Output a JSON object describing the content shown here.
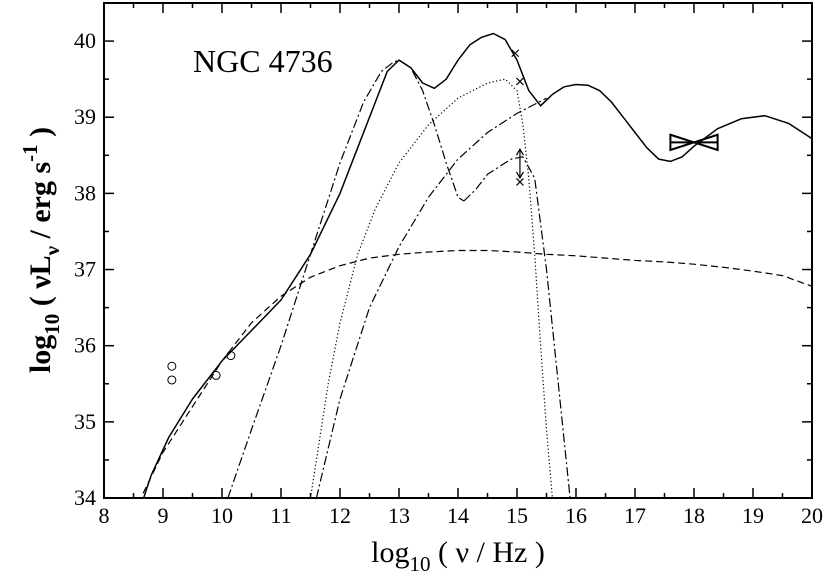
{
  "chart_data": {
    "type": "line",
    "title": "",
    "annotation": "NGC 4736",
    "xlabel": {
      "prefix": "log",
      "sub": "10",
      "body": " ( ν / Hz )"
    },
    "ylabel": {
      "prefix": "log",
      "sub": "10",
      "open": " ( νL",
      "sub2": "ν",
      "mid": " / erg s",
      "sup": "-1",
      "close": " )"
    },
    "xlim": [
      8,
      20
    ],
    "ylim": [
      34,
      40.5
    ],
    "xticks": [
      8,
      9,
      10,
      11,
      12,
      13,
      14,
      15,
      16,
      17,
      18,
      19,
      20
    ],
    "yticks": [
      34,
      35,
      36,
      37,
      38,
      39,
      40
    ],
    "grid": false,
    "series": [
      {
        "style": "solid",
        "x": [
          8.5,
          8.8,
          9.1,
          9.5,
          10.0,
          10.5,
          11.0,
          11.5,
          12.0,
          12.3,
          12.6,
          12.8,
          13.0,
          13.2,
          13.4,
          13.6,
          13.8,
          14.0,
          14.2,
          14.4,
          14.6,
          14.8,
          15.0,
          15.2,
          15.4,
          15.6,
          15.8,
          16.0,
          16.2,
          16.4,
          16.6,
          16.8,
          17.0,
          17.2,
          17.4,
          17.6,
          17.8,
          18.0,
          18.4,
          18.8,
          19.2,
          19.6,
          20.0
        ],
        "y": [
          33.6,
          34.3,
          34.8,
          35.3,
          35.8,
          36.2,
          36.6,
          37.2,
          38.0,
          38.6,
          39.2,
          39.6,
          39.75,
          39.65,
          39.45,
          39.38,
          39.5,
          39.75,
          39.95,
          40.05,
          40.1,
          40.02,
          39.75,
          39.35,
          39.15,
          39.3,
          39.4,
          39.43,
          39.42,
          39.35,
          39.2,
          39.0,
          38.8,
          38.6,
          38.45,
          38.42,
          38.48,
          38.62,
          38.85,
          38.98,
          39.02,
          38.92,
          38.72
        ]
      },
      {
        "style": "dashed",
        "x": [
          8.5,
          9.0,
          9.5,
          10.0,
          10.5,
          11.0,
          11.5,
          12.0,
          12.5,
          13.0,
          13.5,
          14.0,
          14.5,
          15.0,
          15.5,
          16.0,
          16.5,
          17.0,
          17.5,
          18.0,
          18.5,
          19.0,
          19.5,
          20.0
        ],
        "y": [
          33.8,
          34.6,
          35.2,
          35.8,
          36.3,
          36.65,
          36.9,
          37.05,
          37.15,
          37.2,
          37.23,
          37.25,
          37.25,
          37.23,
          37.2,
          37.18,
          37.15,
          37.12,
          37.1,
          37.07,
          37.03,
          36.98,
          36.92,
          36.78
        ]
      },
      {
        "style": "dash-dot",
        "x": [
          10.1,
          10.5,
          11.0,
          11.5,
          12.0,
          12.4,
          12.7,
          12.9,
          13.0,
          13.2,
          13.4,
          13.6,
          13.8,
          14.0,
          14.1
        ],
        "y": [
          34.0,
          34.9,
          36.0,
          37.2,
          38.4,
          39.2,
          39.6,
          39.72,
          39.75,
          39.65,
          39.35,
          38.9,
          38.4,
          37.95,
          37.9
        ]
      },
      {
        "style": "dash-dot",
        "x": [
          14.1,
          14.3,
          14.5,
          14.7,
          14.9,
          15.1,
          15.3,
          15.5,
          15.7,
          15.9
        ],
        "y": [
          37.9,
          38.05,
          38.25,
          38.35,
          38.45,
          38.48,
          38.2,
          37.0,
          35.5,
          34.0
        ]
      },
      {
        "style": "dash-dot",
        "x": [
          11.6,
          12.0,
          12.5,
          13.0,
          13.5,
          14.0,
          14.5,
          15.0,
          15.5
        ],
        "y": [
          34.0,
          35.3,
          36.5,
          37.3,
          37.95,
          38.45,
          38.8,
          39.05,
          39.25
        ]
      },
      {
        "style": "dotted",
        "x": [
          11.5,
          11.8,
          12.0,
          12.3,
          12.6,
          13.0,
          13.5,
          14.0,
          14.5,
          14.8,
          15.0,
          15.1,
          15.2,
          15.3,
          15.4,
          15.5,
          15.6
        ],
        "y": [
          34.0,
          35.5,
          36.3,
          37.2,
          37.8,
          38.4,
          38.9,
          39.25,
          39.45,
          39.5,
          39.35,
          38.9,
          38.2,
          37.2,
          36.0,
          34.9,
          34.0
        ]
      }
    ],
    "points": {
      "circles": [
        {
          "x": 9.15,
          "y": 35.73
        },
        {
          "x": 9.15,
          "y": 35.55
        },
        {
          "x": 9.9,
          "y": 35.61
        },
        {
          "x": 10.15,
          "y": 35.87
        }
      ],
      "crosses": [
        {
          "x": 14.97,
          "y": 39.84
        },
        {
          "x": 15.05,
          "y": 39.47
        },
        {
          "x": 15.05,
          "y": 38.15
        }
      ],
      "limit_arrow": {
        "x": 15.05,
        "y_from": 38.15,
        "y_to": 38.58
      },
      "bowtie": {
        "x_from": 17.6,
        "x_to": 18.4,
        "y_center": 38.67,
        "y_low": 38.57,
        "y_high": 38.77
      }
    }
  }
}
